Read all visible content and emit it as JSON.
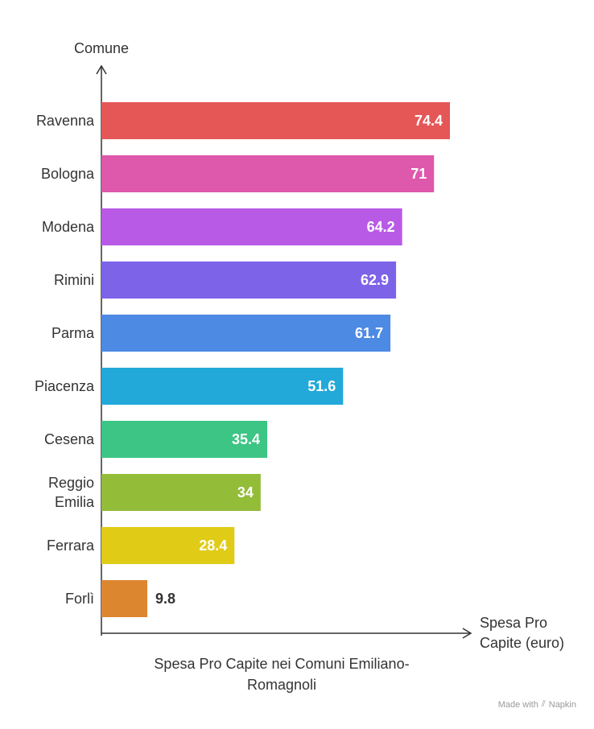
{
  "chart_data": {
    "type": "bar",
    "orientation": "horizontal",
    "categories": [
      "Ravenna",
      "Bologna",
      "Modena",
      "Rimini",
      "Parma",
      "Piacenza",
      "Cesena",
      "Reggio Emilia",
      "Ferrara",
      "Forlì"
    ],
    "category_lines": [
      [
        "Ravenna"
      ],
      [
        "Bologna"
      ],
      [
        "Modena"
      ],
      [
        "Rimini"
      ],
      [
        "Parma"
      ],
      [
        "Piacenza"
      ],
      [
        "Cesena"
      ],
      [
        "Reggio",
        "Emilia"
      ],
      [
        "Ferrara"
      ],
      [
        "Forlì"
      ]
    ],
    "values": [
      74.4,
      71,
      64.2,
      62.9,
      61.7,
      51.6,
      35.4,
      34,
      28.4,
      9.8
    ],
    "value_labels": [
      "74.4",
      "71",
      "64.2",
      "62.9",
      "61.7",
      "51.6",
      "35.4",
      "34",
      "28.4",
      "9.8"
    ],
    "colors": [
      "#E55757",
      "#DE58AB",
      "#B95AE6",
      "#7D63E8",
      "#4C8AE4",
      "#22A9DA",
      "#3CC584",
      "#93BC39",
      "#E0CB16",
      "#DD8630"
    ],
    "xlabel": "Spesa Pro Capite (euro)",
    "xlabel_lines": [
      "Spesa Pro",
      "Capite (euro)"
    ],
    "ylabel": "Comune",
    "xlim": [
      0,
      80
    ],
    "grid": false,
    "legend": "none"
  },
  "caption": "Spesa Pro Capite nei Comuni Emiliano-Romagnoli",
  "caption_lines": [
    "Spesa Pro Capite nei Comuni Emiliano-",
    "Romagnoli"
  ],
  "watermark": {
    "prefix": "Made with",
    "brand": "Napkin",
    "icon": "napkin-logo-icon"
  }
}
